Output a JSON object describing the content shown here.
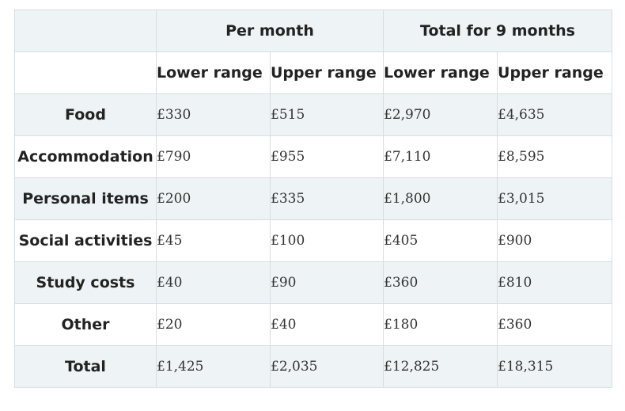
{
  "header": {
    "group_per_month": "Per month",
    "group_total": "Total for 9 months",
    "lower_range": "Lower range",
    "upper_range": "Upper range"
  },
  "rows": [
    {
      "label": "Food",
      "values": [
        "£330",
        "£515",
        "£2,970",
        "£4,635"
      ]
    },
    {
      "label": "Accommodation",
      "values": [
        "£790",
        "£955",
        "£7,110",
        "£8,595"
      ]
    },
    {
      "label": "Personal items",
      "values": [
        "£200",
        "£335",
        "£1,800",
        "£3,015"
      ]
    },
    {
      "label": "Social activities",
      "values": [
        "£45",
        "£100",
        "£405",
        "£900"
      ]
    },
    {
      "label": "Study costs",
      "values": [
        "£40",
        "£90",
        "£360",
        "£810"
      ]
    },
    {
      "label": "Other",
      "values": [
        "£20",
        "£40",
        "£180",
        "£360"
      ]
    },
    {
      "label": "Total",
      "values": [
        "£1,425",
        "£2,035",
        "£12,825",
        "£18,315"
      ]
    }
  ],
  "colors": {
    "shaded_row": "#eef3f6",
    "plain_row": "#ffffff",
    "border": "#d7dde2"
  }
}
